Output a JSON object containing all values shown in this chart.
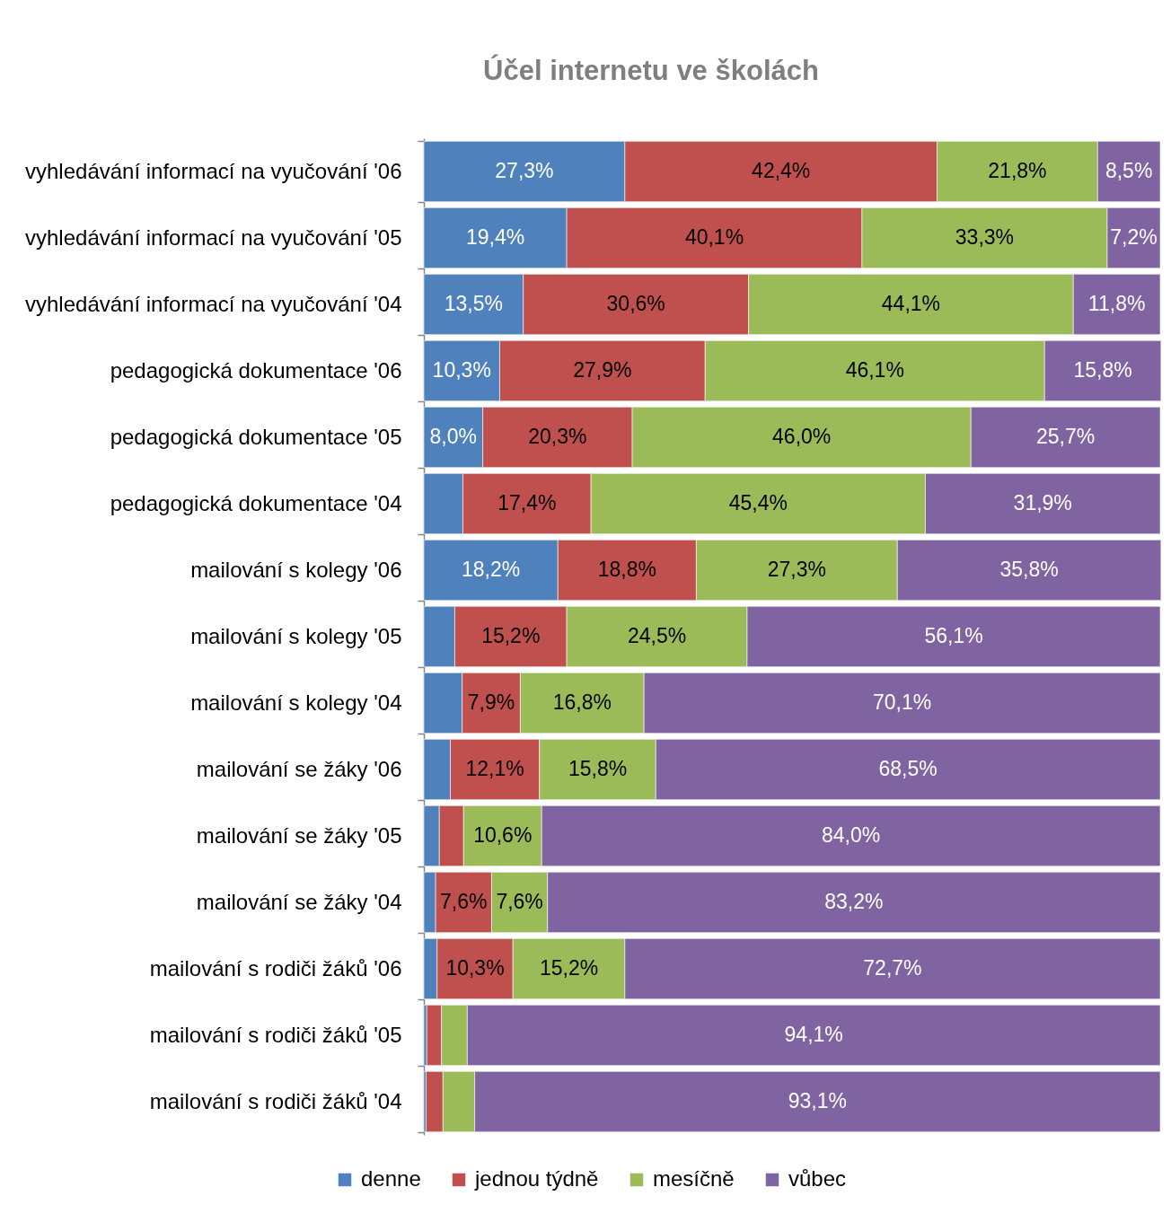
{
  "chart_data": {
    "type": "bar",
    "orientation": "horizontal",
    "stacked": true,
    "title": "Účel internetu ve školách",
    "categories": [
      "vyhledávání informací na vyučování '06",
      "vyhledávání informací na vyučování '05",
      "vyhledávání informací na vyučování '04",
      "pedagogická dokumentace '06",
      "pedagogická dokumentace '05",
      "pedagogická dokumentace '04",
      "mailování s kolegy '06",
      "mailování s kolegy '05",
      "mailování s kolegy '04",
      "mailování se žáky '06",
      "mailování se žáky '05",
      "mailování se žáky '04",
      "mailování s rodiči žáků '06",
      "mailování s rodiči žáků '05",
      "mailování s rodiči žáků '04"
    ],
    "xlim": [
      0,
      100
    ],
    "tick_labels": "y",
    "grid": false,
    "legend": "bottom",
    "series": [
      {
        "name": "denne",
        "color": "#4f81bd",
        "values": [
          27.3,
          19.4,
          13.5,
          10.3,
          8.0,
          5.3,
          18.2,
          4.2,
          5.2,
          3.6,
          2.1,
          1.6,
          1.8,
          0.4,
          0.3
        ],
        "value_labels": [
          "27,3%",
          "19,4%",
          "13,5%",
          "10,3%",
          "8,0%",
          null,
          "18,2%",
          null,
          null,
          null,
          null,
          null,
          null,
          null,
          null
        ]
      },
      {
        "name": "jednou týdně",
        "color": "#c0504d",
        "values": [
          42.4,
          40.1,
          30.6,
          27.9,
          20.3,
          17.4,
          18.8,
          15.2,
          7.9,
          12.1,
          3.3,
          7.6,
          10.3,
          2.0,
          2.3
        ],
        "value_labels": [
          "42,4%",
          "40,1%",
          "30,6%",
          "27,9%",
          "20,3%",
          "17,4%",
          "18,8%",
          "15,2%",
          "7,9%",
          "12,1%",
          null,
          "7,6%",
          "10,3%",
          null,
          null
        ]
      },
      {
        "name": "mesíčně",
        "color": "#9bbb59",
        "values": [
          21.8,
          33.3,
          44.1,
          46.1,
          46.0,
          45.4,
          27.3,
          24.5,
          16.8,
          15.8,
          10.6,
          7.6,
          15.2,
          3.5,
          4.3
        ],
        "value_labels": [
          "21,8%",
          "33,3%",
          "44,1%",
          "46,1%",
          "46,0%",
          "45,4%",
          "27,3%",
          "24,5%",
          "16,8%",
          "15,8%",
          "10,6%",
          "7,6%",
          "15,2%",
          null,
          null
        ]
      },
      {
        "name": "vůbec",
        "color": "#8064a2",
        "values": [
          8.5,
          7.2,
          11.8,
          15.8,
          25.7,
          31.9,
          35.8,
          56.1,
          70.1,
          68.5,
          84.0,
          83.2,
          72.7,
          94.1,
          93.1
        ],
        "value_labels": [
          "8,5%",
          "7,2%",
          "11,8%",
          "15,8%",
          "25,7%",
          "31,9%",
          "35,8%",
          "56,1%",
          "70,1%",
          "68,5%",
          "84,0%",
          "83,2%",
          "72,7%",
          "94,1%",
          "93,1%"
        ]
      }
    ]
  }
}
